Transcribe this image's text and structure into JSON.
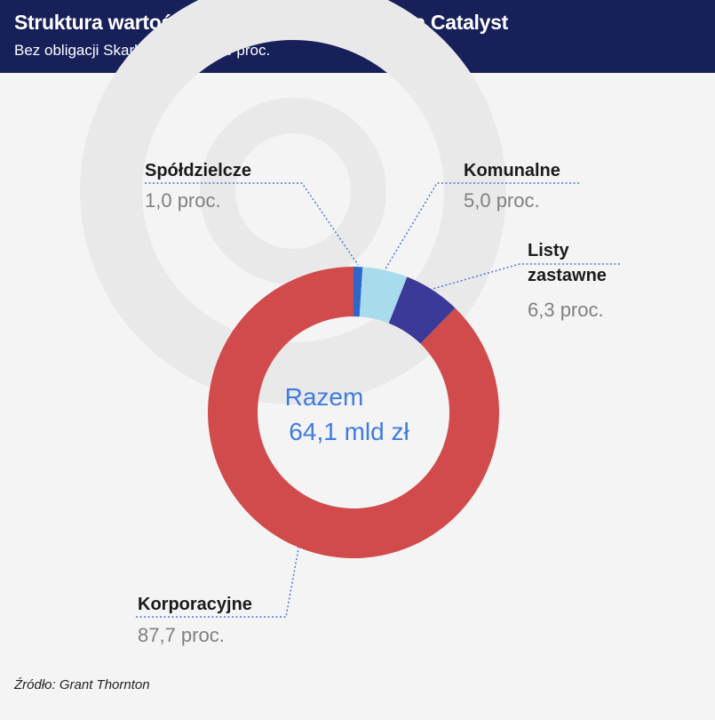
{
  "header": {
    "title": "Struktura wartości obligacji notowanych na Catalyst",
    "subtitle": "Bez obligacji Skarbu Państwa, w proc."
  },
  "chart_data": {
    "type": "pie",
    "title": "Struktura wartości obligacji notowanych na Catalyst",
    "subtitle": "Bez obligacji Skarbu Państwa, w proc.",
    "categories": [
      "Spółdzielcze",
      "Komunalne",
      "Listy zastawne",
      "Korporacyjne"
    ],
    "values": [
      1.0,
      5.0,
      6.3,
      87.7
    ],
    "value_labels": [
      "1,0 proc.",
      "5,0 proc.",
      "6,3 proc.",
      "87,7 proc."
    ],
    "colors": [
      "#2f67c9",
      "#a8dced",
      "#3b3a99",
      "#d14b4c"
    ],
    "center_label": [
      "Razem",
      "64,1 mld zł"
    ],
    "source": "Źródło: Grant Thornton"
  }
}
